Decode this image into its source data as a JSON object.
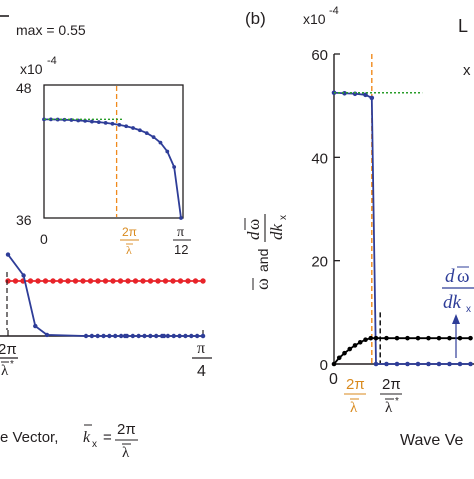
{
  "colors": {
    "axis": "#231f20",
    "blue": "#2e3d98",
    "red": "#e8242a",
    "orange": "#f08a1c",
    "green": "#2a9d2a",
    "dash": "#231f20",
    "label_blue": "#2e3d98",
    "label_orange": "#d98a1e"
  },
  "header": {
    "left_fragment": "max = 0.55",
    "panel_b": "(b)",
    "right_fragment": "L"
  },
  "text": {
    "exp_main": "x10",
    "exp_power": "-4",
    "exp_inset_power": "-4",
    "two_pi": "2π",
    "lambda": "λ",
    "lambda_star": "λ",
    "star": "*",
    "pi": "π",
    "four": "4",
    "twelve": "12",
    "zero": "0",
    "left_xlabel": "e Vector,",
    "kx": "k",
    "kx_sub": "x",
    "eq": "=",
    "b_xlabel": "Wave Ve",
    "b_ylabel_omega": "ω",
    "b_ylabel_and": "and",
    "b_ylabel_d": "d",
    "b_ylabel_dk": "dk",
    "b_ylabel_x": "x",
    "annot_d": "d",
    "annot_omega": "ω",
    "annot_dk": "dk",
    "annot_x": "x",
    "cut_x": "x"
  },
  "chart_data": [
    {
      "panel": "a (main, cropped)",
      "type": "line",
      "xticks": [
        "2π/λ*",
        "π/4"
      ],
      "series": [
        {
          "color": "red",
          "points": [
            [
              0.0,
              1.0
            ],
            [
              0.25,
              1.0
            ]
          ],
          "marker": "dot"
        },
        {
          "color": "blue",
          "points": [
            [
              0.0,
              1.48
            ],
            [
              0.02,
              1.1
            ],
            [
              0.035,
              0.18
            ],
            [
              0.05,
              0.02
            ],
            [
              0.1,
              0.0
            ],
            [
              0.15,
              0.0
            ],
            [
              0.2,
              0.0
            ],
            [
              0.25,
              0.0
            ]
          ],
          "marker": "dot"
        }
      ]
    },
    {
      "panel": "a (inset)",
      "type": "line",
      "ylim": [
        36,
        48
      ],
      "yticks": [
        "36",
        "48"
      ],
      "xticks": [
        "0",
        "2π/λ",
        "π/12"
      ],
      "x_range": [
        0,
        1
      ],
      "series": [
        {
          "color": "blue",
          "points": [
            [
              0.0,
              44.9
            ],
            [
              0.05,
              44.9
            ],
            [
              0.1,
              44.88
            ],
            [
              0.15,
              44.86
            ],
            [
              0.2,
              44.84
            ],
            [
              0.25,
              44.8
            ],
            [
              0.3,
              44.76
            ],
            [
              0.35,
              44.7
            ],
            [
              0.4,
              44.65
            ],
            [
              0.45,
              44.58
            ],
            [
              0.5,
              44.5
            ],
            [
              0.55,
              44.4
            ],
            [
              0.6,
              44.28
            ],
            [
              0.65,
              44.12
            ],
            [
              0.7,
              43.92
            ],
            [
              0.75,
              43.66
            ],
            [
              0.8,
              43.3
            ],
            [
              0.85,
              42.8
            ],
            [
              0.9,
              42.0
            ],
            [
              0.95,
              40.6
            ],
            [
              1.0,
              36.0
            ]
          ]
        },
        {
          "color": "green",
          "style": "dotted",
          "points": [
            [
              0.0,
              44.9
            ],
            [
              0.58,
              44.9
            ]
          ]
        }
      ],
      "vlines": [
        {
          "color": "orange",
          "style": "dashed",
          "x": 0.53
        }
      ]
    },
    {
      "panel": "b",
      "type": "line",
      "ylim": [
        0,
        60
      ],
      "yticks": [
        0,
        20,
        40,
        60
      ],
      "xticks": [
        "0",
        "2π/λ",
        "2π/λ*"
      ],
      "series": [
        {
          "color": "blue",
          "points": [
            [
              0.0,
              52.5
            ],
            [
              0.1,
              52.4
            ],
            [
              0.2,
              52.3
            ],
            [
              0.3,
              52.1
            ],
            [
              0.36,
              51.5
            ],
            [
              0.4,
              0.0
            ],
            [
              0.5,
              0.0
            ],
            [
              0.6,
              0.0
            ],
            [
              0.7,
              0.0
            ],
            [
              0.8,
              0.0
            ],
            [
              0.9,
              0.0
            ],
            [
              1.0,
              0.0
            ],
            [
              1.1,
              0.0
            ],
            [
              1.2,
              0.0
            ],
            [
              1.3,
              0.0
            ]
          ]
        },
        {
          "color": "black",
          "points": [
            [
              0.0,
              0.0
            ],
            [
              0.05,
              1.2
            ],
            [
              0.1,
              2.1
            ],
            [
              0.15,
              2.9
            ],
            [
              0.2,
              3.6
            ],
            [
              0.25,
              4.2
            ],
            [
              0.3,
              4.7
            ],
            [
              0.35,
              5.0
            ],
            [
              0.4,
              5.0
            ],
            [
              0.5,
              5.0
            ],
            [
              0.6,
              5.0
            ],
            [
              0.7,
              5.0
            ],
            [
              0.8,
              5.0
            ],
            [
              0.9,
              5.0
            ],
            [
              1.0,
              5.0
            ],
            [
              1.1,
              5.0
            ],
            [
              1.2,
              5.0
            ],
            [
              1.3,
              5.0
            ]
          ]
        },
        {
          "color": "green",
          "style": "dotted",
          "points": [
            [
              0.0,
              52.5
            ],
            [
              0.84,
              52.5
            ]
          ]
        }
      ],
      "vlines": [
        {
          "color": "orange",
          "style": "dashed",
          "x": 0.36
        },
        {
          "color": "black",
          "style": "dashed",
          "x": 0.44,
          "ymax": 10
        }
      ]
    }
  ]
}
